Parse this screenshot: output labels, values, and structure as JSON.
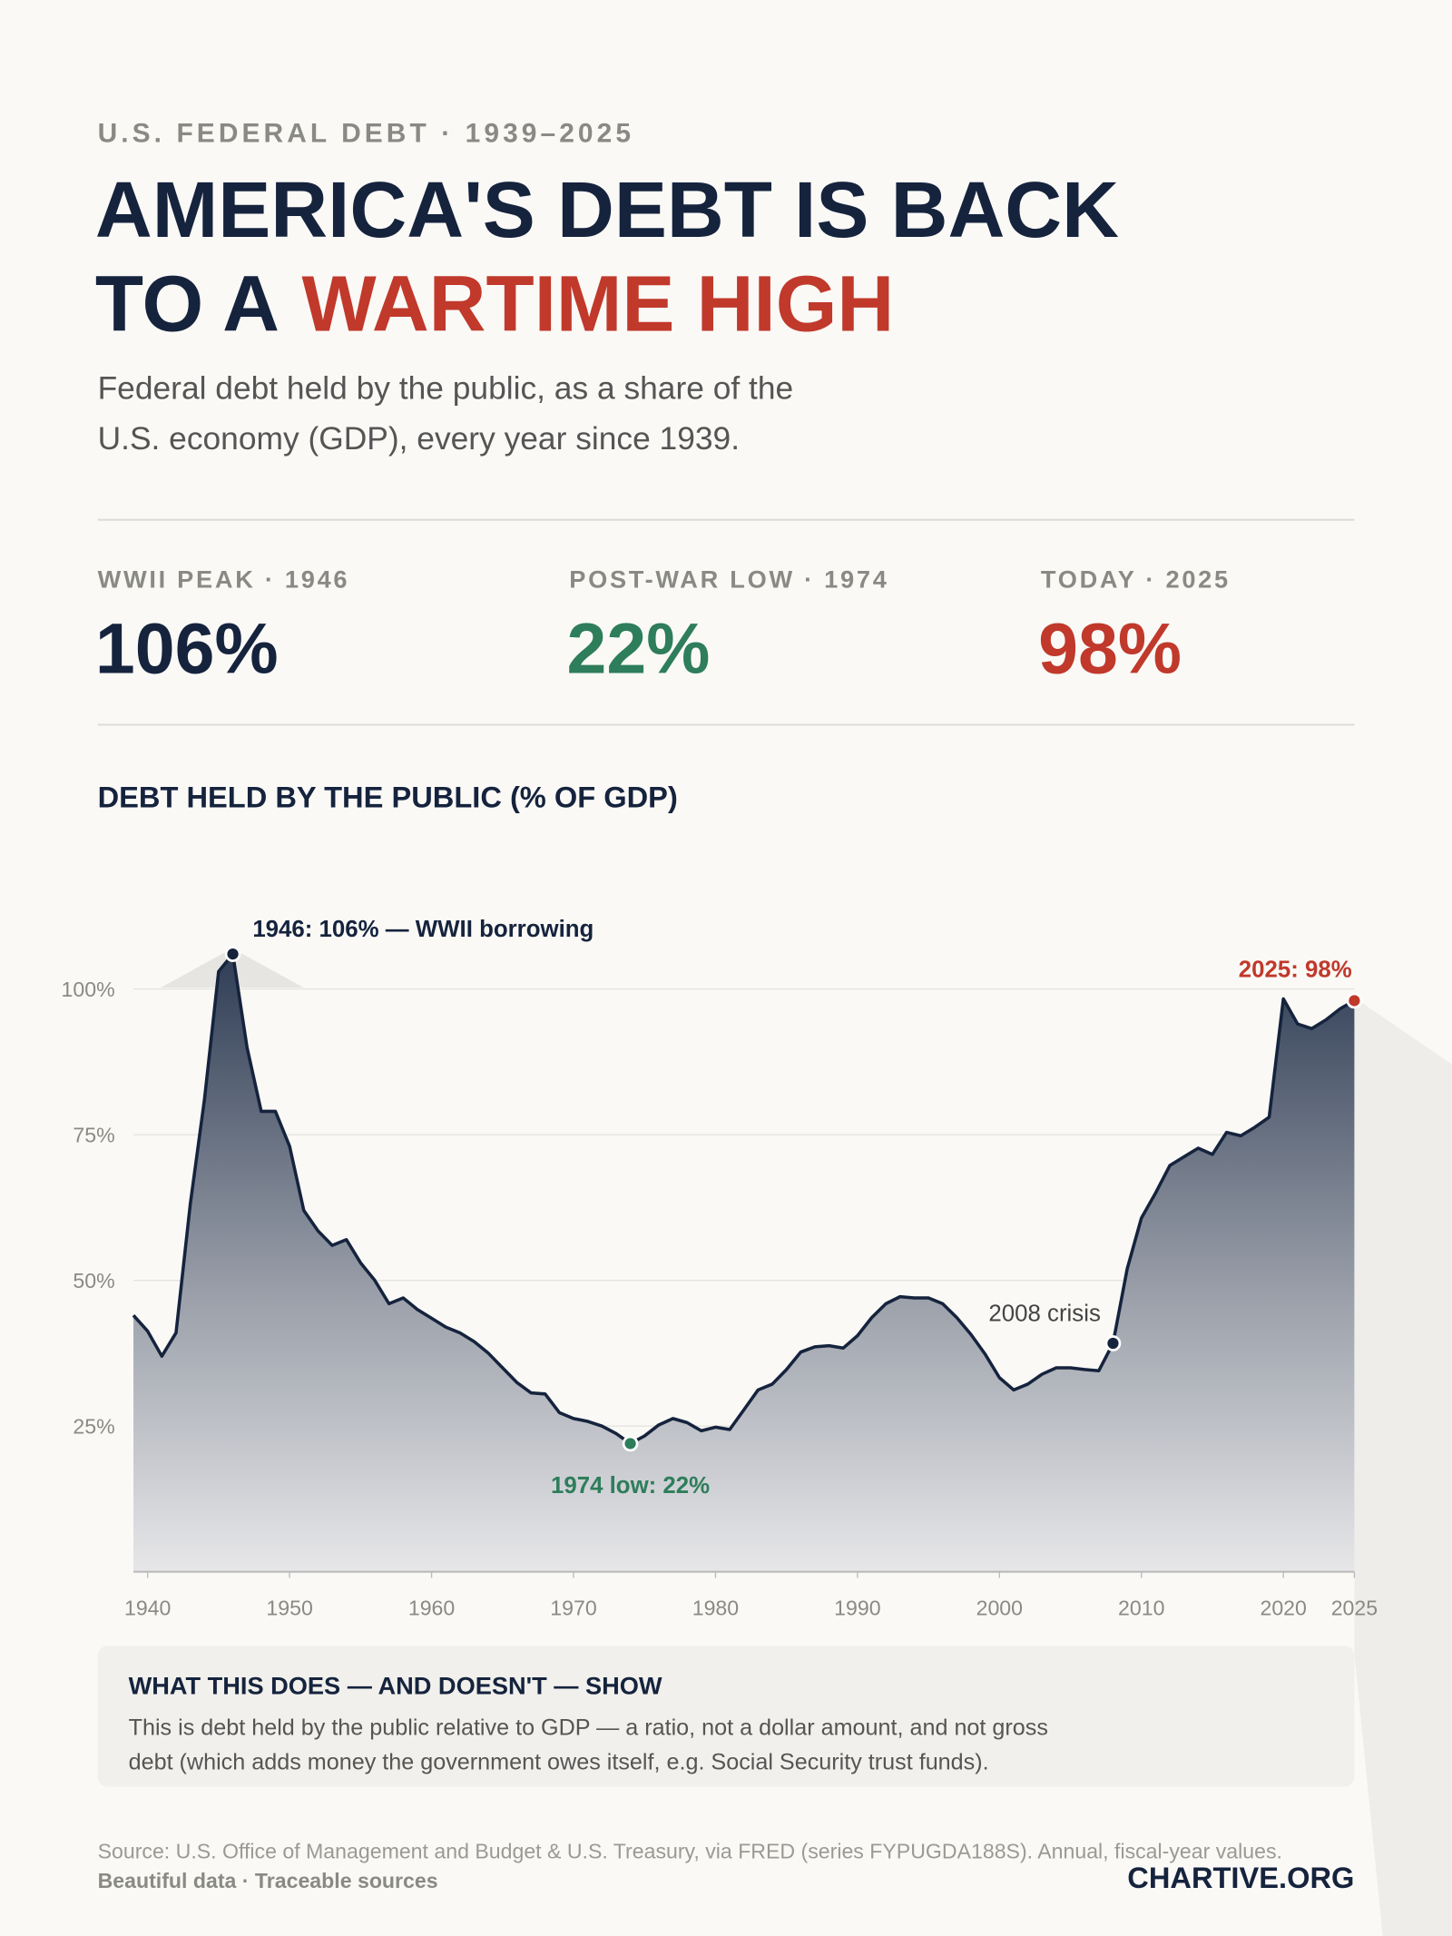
{
  "header": {
    "kicker": "U.S. FEDERAL DEBT · 1939–2025",
    "title_line1": "AMERICA'S DEBT IS BACK",
    "title_line2": "TO A",
    "title_highlight": "WARTIME HIGH",
    "subtitle_line1": "Federal debt held by the public, as a share of the",
    "subtitle_line2": "U.S. economy (GDP), every year since 1939."
  },
  "stats": [
    {
      "label": "WWII PEAK · 1946",
      "text": "106%",
      "color": "#15233d"
    },
    {
      "label": "POST-WAR LOW · 1974",
      "text": "22%",
      "color": "#2e7d5b"
    },
    {
      "label": "TODAY · 2025",
      "text": "98%",
      "color": "#c0392b"
    }
  ],
  "chart_data": {
    "type": "area",
    "title": "DEBT HELD BY THE PUBLIC (% OF GDP)",
    "color": "#15233d",
    "x": [
      1939,
      1940,
      1941,
      1942,
      1943,
      1944,
      1945,
      1946,
      1947,
      1948,
      1949,
      1950,
      1951,
      1952,
      1953,
      1954,
      1955,
      1956,
      1957,
      1958,
      1959,
      1960,
      1961,
      1962,
      1963,
      1964,
      1965,
      1966,
      1967,
      1968,
      1969,
      1970,
      1971,
      1972,
      1973,
      1974,
      1975,
      1976,
      1977,
      1978,
      1979,
      1980,
      1981,
      1982,
      1983,
      1984,
      1985,
      1986,
      1987,
      1988,
      1989,
      1990,
      1991,
      1992,
      1993,
      1994,
      1995,
      1996,
      1997,
      1998,
      1999,
      2000,
      2001,
      2002,
      2003,
      2004,
      2005,
      2006,
      2007,
      2008,
      2009,
      2010,
      2011,
      2012,
      2013,
      2014,
      2015,
      2016,
      2017,
      2018,
      2019,
      2020,
      2021,
      2022,
      2023,
      2024,
      2025
    ],
    "values": [
      44,
      41.3,
      37,
      41,
      63,
      81,
      103,
      106,
      90,
      79,
      79,
      73,
      62,
      58.5,
      56,
      57,
      53,
      50,
      46,
      47,
      45,
      43.5,
      42,
      41,
      39.5,
      37.5,
      35,
      32.5,
      30.7,
      30.5,
      27.3,
      26.3,
      25.8,
      25,
      23.7,
      22,
      23.3,
      25.2,
      26.3,
      25.6,
      24.2,
      24.8,
      24.4,
      27.8,
      31.2,
      32.2,
      34.7,
      37.7,
      38.6,
      38.8,
      38.4,
      40.5,
      43.6,
      46,
      47.2,
      47,
      47,
      46,
      43.6,
      40.7,
      37.3,
      33.3,
      31.2,
      32.2,
      33.9,
      35,
      35,
      34.7,
      34.5,
      39.2,
      52,
      60.7,
      65,
      69.7,
      71.2,
      72.7,
      71.6,
      75.4,
      74.8,
      76.3,
      78,
      98.3,
      94,
      93.2,
      94.7,
      96.6,
      98
    ],
    "xlim": [
      1939,
      2025
    ],
    "xticks": [
      1940,
      1950,
      1960,
      1970,
      1980,
      1990,
      2000,
      2010,
      2020,
      2025
    ],
    "ylim": [
      0,
      110
    ],
    "yticks": [
      {
        "value": 25,
        "label": "25%"
      },
      {
        "value": 50,
        "label": "50%"
      },
      {
        "value": 75,
        "label": "75%"
      },
      {
        "value": 100,
        "label": "100%"
      }
    ],
    "grid": true,
    "annotations": [
      {
        "text": "1946: 106% — WWII borrowing",
        "x": 1946,
        "color": "#15233d"
      },
      {
        "text": "1974 low: 22%",
        "x": 1974,
        "color": "#2e7d5b"
      },
      {
        "text": "2008 crisis",
        "x": 2008,
        "color": "#15233d"
      },
      {
        "text": "2025: 98%",
        "x": 2025,
        "color": "#c0392b"
      }
    ]
  },
  "note": {
    "title": "WHAT THIS DOES — AND DOESN'T — SHOW",
    "line1": "This is debt held by the public relative to GDP — a ratio, not a dollar amount, and not gross",
    "line2": "debt (which adds money the government owes itself, e.g. Social Security trust funds)."
  },
  "footer": {
    "source": "Source: U.S. Office of Management and Budget & U.S. Treasury, via FRED (series FYPUGDA188S). Annual, fiscal-year values.",
    "tagline": "Beautiful data · Traceable sources",
    "brand": "CHARTIVE.ORG"
  }
}
